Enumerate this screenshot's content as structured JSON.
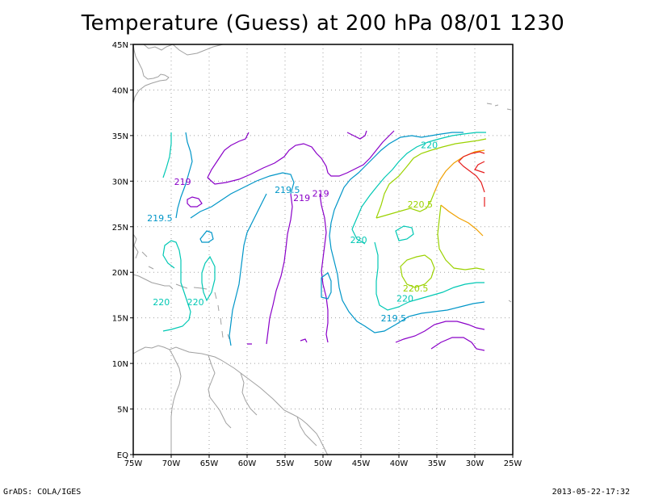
{
  "title": "Temperature (Guess) at 200 hPa 08/01 1230",
  "footer": {
    "left": "GrADS: COLA/IGES",
    "right": "2013-05-22-17:32"
  },
  "axes": {
    "x_ticks": [
      "75W",
      "70W",
      "65W",
      "60W",
      "55W",
      "50W",
      "45W",
      "40W",
      "35W",
      "30W",
      "25W"
    ],
    "y_ticks": [
      "EQ",
      "5N",
      "10N",
      "15N",
      "20N",
      "25N",
      "30N",
      "35N",
      "40N",
      "45N"
    ],
    "xlim": [
      -75,
      -25
    ],
    "ylim": [
      0,
      45
    ],
    "grid": true
  },
  "contour_labels": [
    {
      "text": "219",
      "lon": -68.5,
      "lat": 29.6,
      "color": "#8a00c8"
    },
    {
      "text": "219",
      "lon": -52.8,
      "lat": 27.8,
      "color": "#8a00c8"
    },
    {
      "text": "219",
      "lon": -50.3,
      "lat": 28.3,
      "color": "#8a00c8"
    },
    {
      "text": "219.5",
      "lon": -54.7,
      "lat": 28.7,
      "color": "#0096c8"
    },
    {
      "text": "219.5",
      "lon": -71.5,
      "lat": 25.6,
      "color": "#0096c8"
    },
    {
      "text": "219.5",
      "lon": -40.7,
      "lat": 14.6,
      "color": "#0096c8"
    },
    {
      "text": "220",
      "lon": -36.0,
      "lat": 33.6,
      "color": "#00c8b4"
    },
    {
      "text": "220",
      "lon": -45.3,
      "lat": 23.2,
      "color": "#00c8b4"
    },
    {
      "text": "220",
      "lon": -71.3,
      "lat": 16.4,
      "color": "#00c8b4"
    },
    {
      "text": "220",
      "lon": -66.8,
      "lat": 16.4,
      "color": "#00c8b4"
    },
    {
      "text": "220",
      "lon": -39.2,
      "lat": 16.8,
      "color": "#00c8b4"
    },
    {
      "text": "220.5",
      "lon": -37.2,
      "lat": 27.1,
      "color": "#9bd200"
    },
    {
      "text": "220.5",
      "lon": -37.8,
      "lat": 17.9,
      "color": "#9bd200"
    }
  ],
  "colors": {
    "c219": "#8a00c8",
    "c2195": "#0096c8",
    "c220": "#00c8b4",
    "c2205": "#9bd200",
    "c221": "#f0a000",
    "c2215": "#e61e1e",
    "coast": "#a0a0a0",
    "grid": "#a0a0a0"
  }
}
